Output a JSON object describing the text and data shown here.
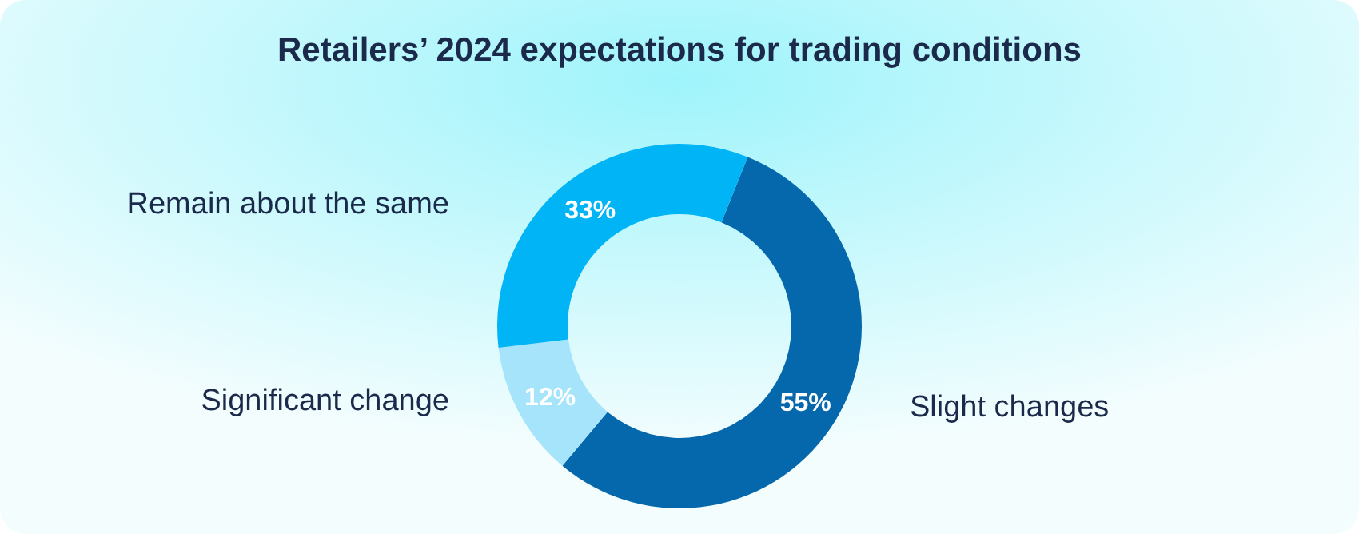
{
  "chart_data": {
    "type": "donut",
    "title": "Retailers’ 2024 expectations for trading conditions",
    "categories": [
      "Slight changes",
      "Significant change",
      "Remain about the same"
    ],
    "values": [
      55,
      12,
      33
    ],
    "colors": [
      "#0568ad",
      "#a5e4fb",
      "#00b4f5"
    ],
    "value_labels": [
      "55%",
      "12%",
      "33%"
    ]
  }
}
